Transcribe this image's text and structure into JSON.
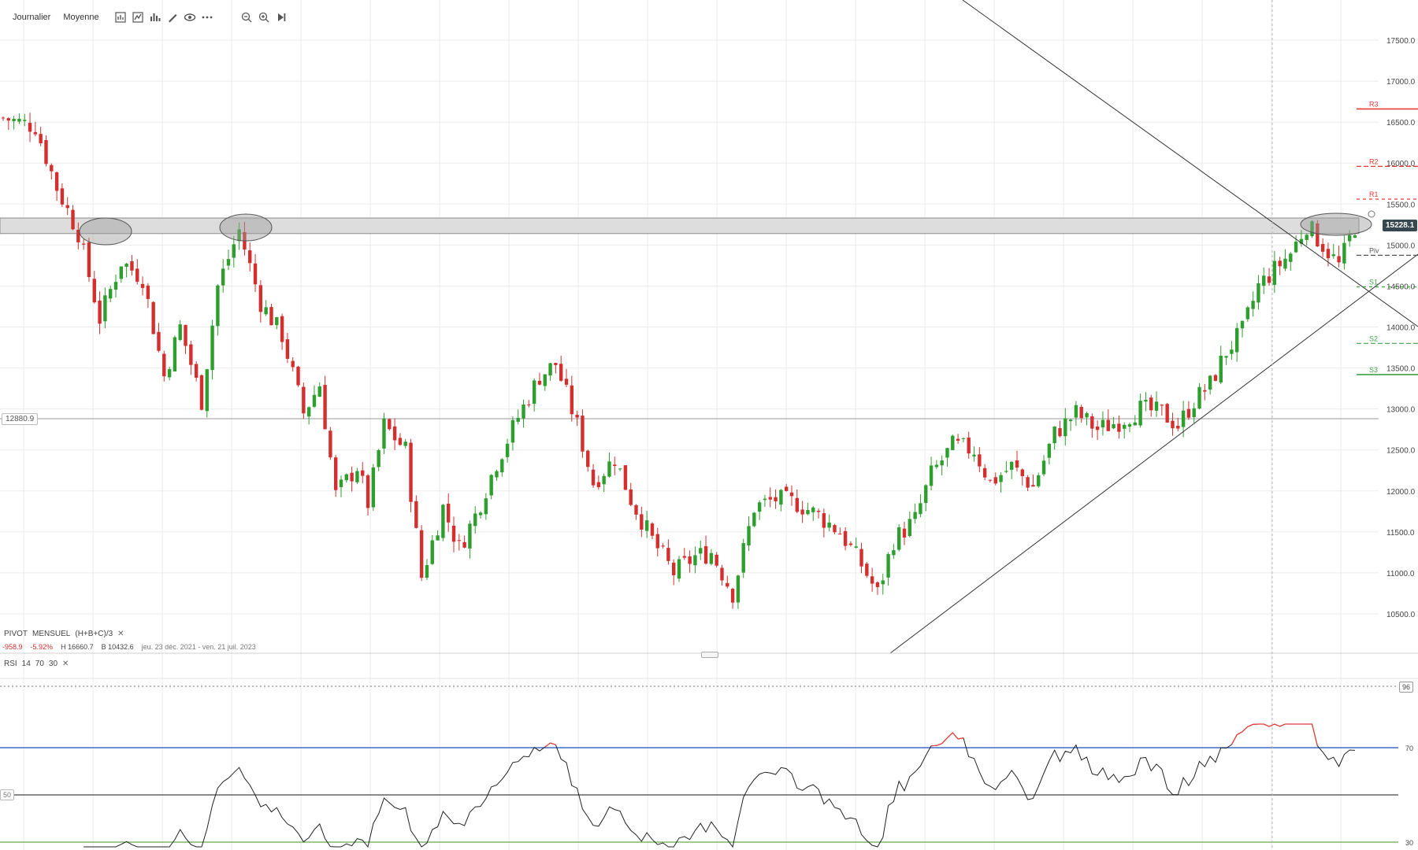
{
  "toolbar": {
    "period_label": "Journalier",
    "style_label": "Moyenne",
    "icons": [
      "chart-type-icon",
      "indicator-icon",
      "bar-chart-icon",
      "pencil-icon",
      "eye-icon",
      "more-icon",
      "zoom-out-icon",
      "zoom-in-icon",
      "play-forward-icon"
    ]
  },
  "colors": {
    "up": "#2e9e2e",
    "down": "#d32f2f",
    "pivot_resistance": "#e53935",
    "pivot_support": "#43a047",
    "rsi_line": "#222222",
    "rsi_overbought": "#1e4fb8",
    "rsi_oversold": "#6aa84f",
    "grid": "#ebebeb"
  },
  "price_axis": {
    "ticks": [
      "17500.0",
      "17000.0",
      "16500.0",
      "16000.0",
      "15500.0",
      "15000.0",
      "14500.0",
      "14000.0",
      "13500.0",
      "13000.0",
      "12500.0",
      "12000.0",
      "11500.0",
      "11000.0",
      "10500.0"
    ],
    "ylim": [
      10100,
      17800
    ]
  },
  "current_price": "15228.1",
  "horizontal_line_label": "12880.9",
  "pivot_levels": [
    {
      "label": "R3",
      "value": 16660
    },
    {
      "label": "R2",
      "value": 15960
    },
    {
      "label": "R1",
      "value": 15560
    },
    {
      "label": "Piv",
      "value": 14875
    },
    {
      "label": "S1",
      "value": 14490
    },
    {
      "label": "S2",
      "value": 13800
    },
    {
      "label": "S3",
      "value": 13420
    }
  ],
  "pivot": {
    "name": "PIVOT",
    "period": "MENSUEL",
    "formula": "(H+B+C)/3",
    "change": "-958.9",
    "change_pct": "-5.92%",
    "high": "H 16660.7",
    "low": "B 10432.6",
    "range": "jeu. 23 déc. 2021 - ven. 21 juil. 2023"
  },
  "rsi": {
    "name": "RSI",
    "period": "14",
    "overbought": "70",
    "oversold": "30",
    "axis_labels": [
      "96",
      "70",
      "50",
      "30"
    ]
  },
  "chart_data": {
    "type": "candlestick",
    "title": "",
    "ylim": [
      10100,
      17800
    ],
    "close_anchors": [
      [
        0,
        16550
      ],
      [
        6,
        16450
      ],
      [
        10,
        15700
      ],
      [
        14,
        15150
      ],
      [
        18,
        14100
      ],
      [
        22,
        14800
      ],
      [
        26,
        14600
      ],
      [
        30,
        13400
      ],
      [
        33,
        14000
      ],
      [
        37,
        13100
      ],
      [
        40,
        14500
      ],
      [
        44,
        15180
      ],
      [
        48,
        14300
      ],
      [
        52,
        13900
      ],
      [
        56,
        12950
      ],
      [
        59,
        13300
      ],
      [
        62,
        11950
      ],
      [
        66,
        12300
      ],
      [
        68,
        11850
      ],
      [
        71,
        12800
      ],
      [
        75,
        12500
      ],
      [
        78,
        10950
      ],
      [
        82,
        11800
      ],
      [
        85,
        11300
      ],
      [
        88,
        11700
      ],
      [
        92,
        12350
      ],
      [
        96,
        12900
      ],
      [
        100,
        13400
      ],
      [
        103,
        13550
      ],
      [
        107,
        12800
      ],
      [
        110,
        12100
      ],
      [
        114,
        12400
      ],
      [
        117,
        11900
      ],
      [
        121,
        11400
      ],
      [
        125,
        11000
      ],
      [
        129,
        11200
      ],
      [
        132,
        11250
      ],
      [
        136,
        10750
      ],
      [
        140,
        11800
      ],
      [
        144,
        11900
      ],
      [
        148,
        11850
      ],
      [
        152,
        11700
      ],
      [
        156,
        11500
      ],
      [
        160,
        11100
      ],
      [
        163,
        10750
      ],
      [
        166,
        11400
      ],
      [
        170,
        11650
      ],
      [
        173,
        12200
      ],
      [
        177,
        12550
      ],
      [
        181,
        12500
      ],
      [
        184,
        12100
      ],
      [
        188,
        12300
      ],
      [
        192,
        12050
      ],
      [
        196,
        12700
      ],
      [
        200,
        12950
      ],
      [
        204,
        12750
      ],
      [
        208,
        12850
      ],
      [
        212,
        13000
      ],
      [
        216,
        12950
      ],
      [
        219,
        12800
      ],
      [
        222,
        13100
      ],
      [
        225,
        13300
      ],
      [
        228,
        13700
      ],
      [
        231,
        13950
      ],
      [
        234,
        14500
      ],
      [
        237,
        14700
      ],
      [
        240,
        14900
      ],
      [
        243,
        15250
      ],
      [
        246,
        15000
      ],
      [
        249,
        14750
      ],
      [
        252,
        15228
      ]
    ],
    "resistance_zone": [
      15140,
      15330
    ],
    "trendline_down": [
      [
        1222,
        0
      ],
      [
        1800,
        415
      ]
    ],
    "trendline_up": [
      [
        1130,
        830
      ],
      [
        1800,
        323
      ]
    ]
  }
}
